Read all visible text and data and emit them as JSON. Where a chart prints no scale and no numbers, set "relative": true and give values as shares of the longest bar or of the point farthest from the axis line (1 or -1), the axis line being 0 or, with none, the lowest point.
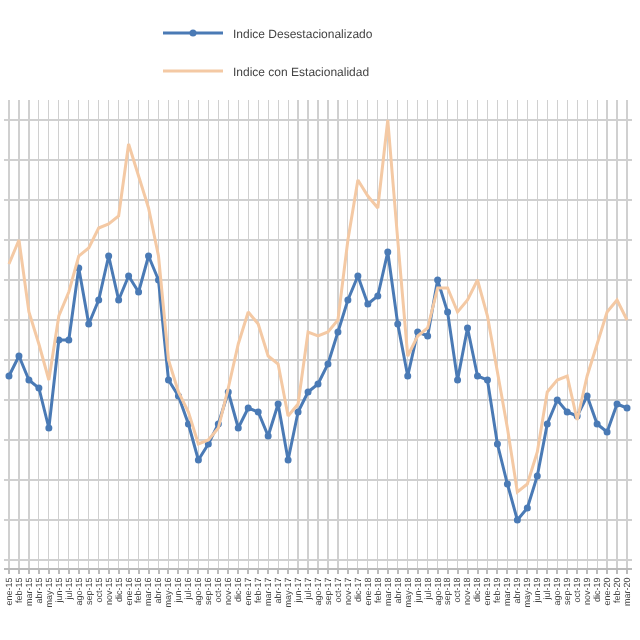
{
  "chart_data": {
    "type": "line",
    "relative": true,
    "grid": true,
    "legend": "top",
    "marker": "circle",
    "line_style": "solid",
    "categories": [
      "ene-15",
      "feb-15",
      "mar-15",
      "abr-15",
      "may-15",
      "jun-15",
      "jul-15",
      "ago-15",
      "sep-15",
      "oct-15",
      "nov-15",
      "dic-15",
      "ene-16",
      "feb-16",
      "mar-16",
      "abr-16",
      "may-16",
      "jun-16",
      "jul-16",
      "ago-16",
      "sep-16",
      "oct-16",
      "nov-16",
      "dic-16",
      "ene-17",
      "feb-17",
      "mar-17",
      "abr-17",
      "may-17",
      "jun-17",
      "jul-17",
      "ago-17",
      "sep-17",
      "oct-17",
      "nov-17",
      "dic-17",
      "ene-18",
      "feb-18",
      "mar-18",
      "abr-18",
      "may-18",
      "jun-18",
      "jul-18",
      "ago-18",
      "sep-18",
      "oct-18",
      "nov-18",
      "dic-18",
      "ene-19",
      "feb-19",
      "mar-19",
      "abr-19",
      "may-19",
      "jun-19",
      "jul-19",
      "ago-19",
      "sep-19",
      "oct-19",
      "nov-19",
      "dic-19",
      "ene-20",
      "feb-20",
      "mar-20"
    ],
    "series": [
      {
        "name": "Indice Desestacionalizado",
        "color": "#4a7ab5",
        "values": [
          0.36,
          0.41,
          0.35,
          0.33,
          0.23,
          0.45,
          0.45,
          0.63,
          0.49,
          0.55,
          0.66,
          0.55,
          0.61,
          0.57,
          0.66,
          0.6,
          0.35,
          0.31,
          0.24,
          0.15,
          0.19,
          0.24,
          0.32,
          0.23,
          0.28,
          0.27,
          0.21,
          0.29,
          0.15,
          0.27,
          0.32,
          0.34,
          0.39,
          0.47,
          0.55,
          0.61,
          0.54,
          0.56,
          0.67,
          0.49,
          0.36,
          0.47,
          0.46,
          0.6,
          0.52,
          0.35,
          0.48,
          0.36,
          0.35,
          0.19,
          0.09,
          0,
          0.03,
          0.11,
          0.24,
          0.3,
          0.27,
          0.26,
          0.31,
          0.24,
          0.22,
          0.29,
          0.28
        ]
      },
      {
        "name": "Indice con Estacionalidad",
        "color": "#f4c9a4",
        "marker": "none",
        "values": [
          0.64,
          0.7,
          0.52,
          0.44,
          0.35,
          0.51,
          0.57,
          0.66,
          0.68,
          0.73,
          0.74,
          0.76,
          0.94,
          0.86,
          0.78,
          0.66,
          0.4,
          0.32,
          0.27,
          0.19,
          0.2,
          0.23,
          0.33,
          0.44,
          0.52,
          0.49,
          0.41,
          0.39,
          0.26,
          0.29,
          0.47,
          0.46,
          0.47,
          0.5,
          0.7,
          0.85,
          0.81,
          0.78,
          1,
          0.7,
          0.41,
          0.46,
          0.48,
          0.58,
          0.58,
          0.52,
          0.55,
          0.6,
          0.51,
          0.37,
          0.23,
          0.07,
          0.09,
          0.17,
          0.32,
          0.35,
          0.36,
          0.25,
          0.36,
          0.44,
          0.52,
          0.55,
          0.5
        ]
      }
    ]
  }
}
